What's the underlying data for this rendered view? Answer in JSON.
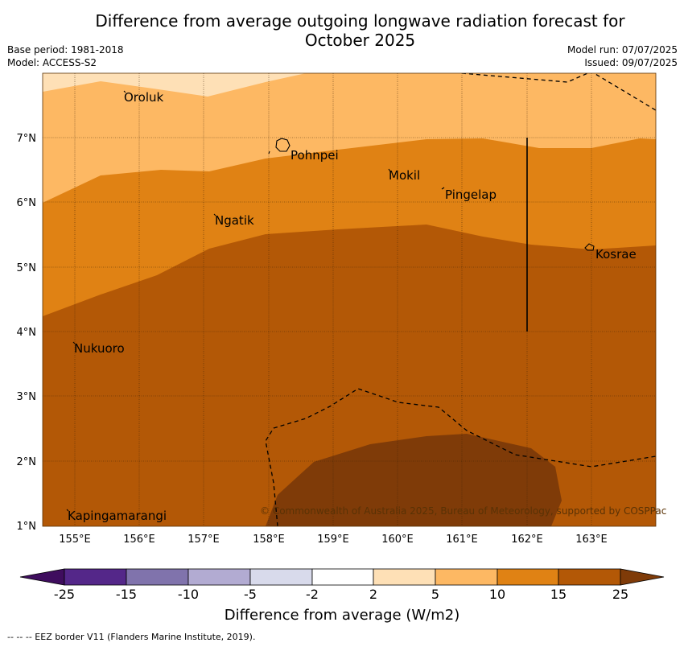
{
  "title_line1": "Difference from average outgoing longwave radiation forecast for",
  "title_line2": "October 2025",
  "meta_left": [
    "Base period: 1981-2018",
    "Model: ACCESS-S2"
  ],
  "meta_right": [
    "Model run: 07/07/2025",
    "Issued: 09/07/2025"
  ],
  "lon_labels": [
    "155°E",
    "156°E",
    "157°E",
    "158°E",
    "159°E",
    "160°E",
    "161°E",
    "162°E",
    "163°E"
  ],
  "lat_labels": [
    "7°N",
    "6°N",
    "5°N",
    "4°N",
    "3°N",
    "2°N",
    "1°N"
  ],
  "places": [
    {
      "name": "Oroluk"
    },
    {
      "name": "Pohnpei"
    },
    {
      "name": "Mokil"
    },
    {
      "name": "Pingelap"
    },
    {
      "name": "Ngatik"
    },
    {
      "name": "Kosrae"
    },
    {
      "name": "Nukuoro"
    },
    {
      "name": "Kapingamarangi"
    }
  ],
  "copyright": "© Commonwealth of Australia 2025, Bureau of Meteorology, supported by COSPPac",
  "colorbar": {
    "labels": [
      "-25",
      "-15",
      "-10",
      "-5",
      "-2",
      "2",
      "5",
      "10",
      "15",
      "25"
    ],
    "colors": [
      "#3f0d5e",
      "#542789",
      "#8073ac",
      "#b2abd2",
      "#d8daeb",
      "#ffffff",
      "#fee0b6",
      "#fdb863",
      "#e08214",
      "#b35806",
      "#7f3b08"
    ],
    "title": "Difference from average (W/m2)"
  },
  "footnote": "--  --  -- EEZ border V11 (Flanders Marine Institute, 2019).",
  "colors": {
    "band_2_5": "#fee0b6",
    "band_5_10": "#fdb863",
    "band_10_15": "#e08214",
    "band_15_25": "#b35806",
    "band_25_plus": "#7f3b08"
  }
}
